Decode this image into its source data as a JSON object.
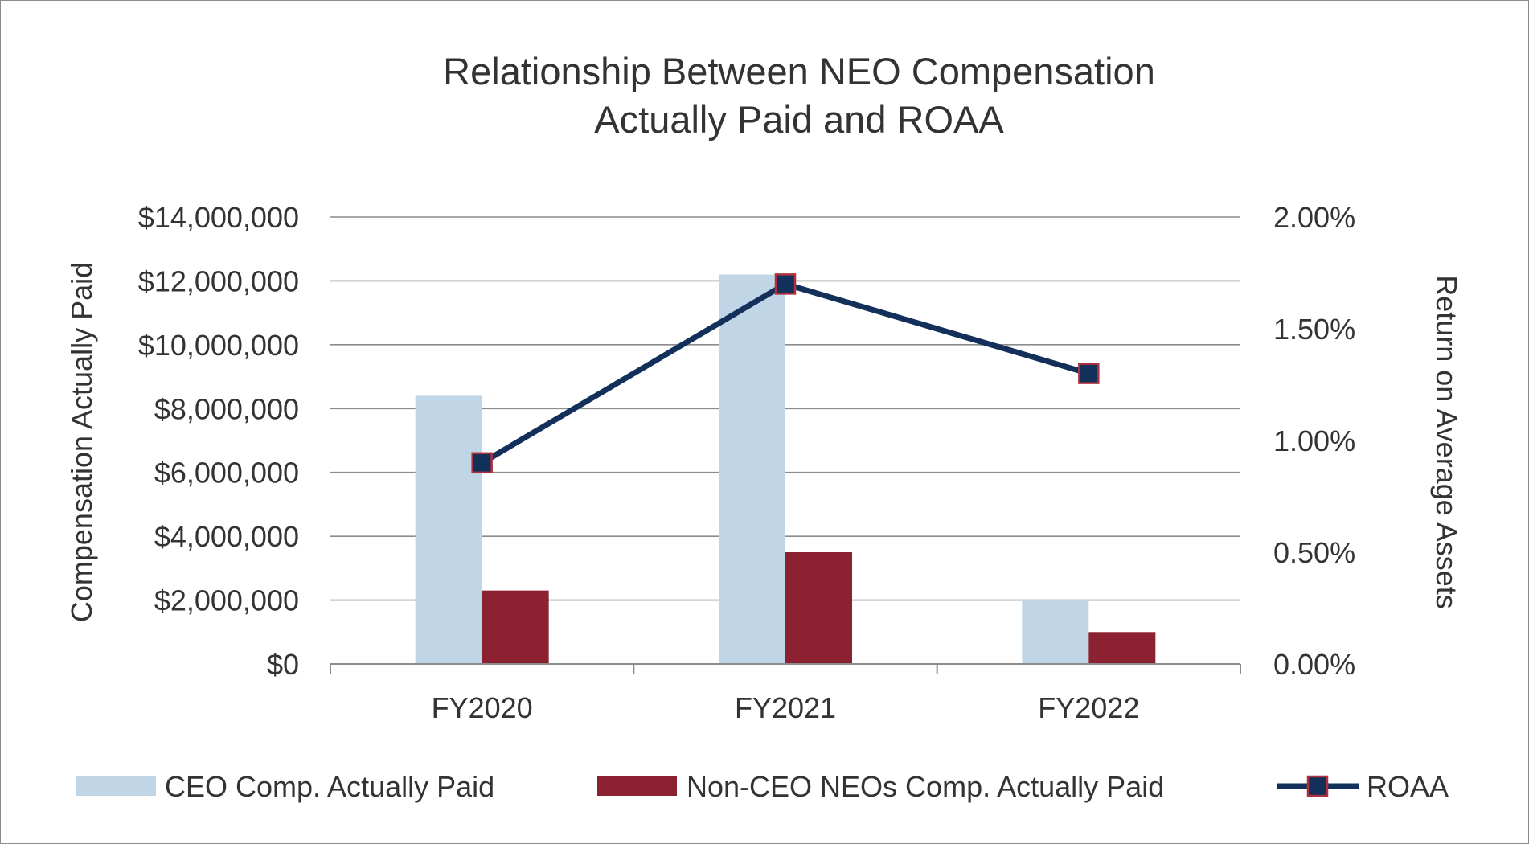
{
  "chart_data": {
    "type": "bar",
    "title": [
      "Relationship Between NEO Compensation",
      "Actually Paid and ROAA"
    ],
    "categories": [
      "FY2020",
      "FY2021",
      "FY2022"
    ],
    "ylabel": "Compensation Actually Paid",
    "y2label": "Return on Average Assets",
    "ylim": [
      0,
      14000000
    ],
    "y2lim": [
      0,
      2.0
    ],
    "yticks": [
      0,
      2000000,
      4000000,
      6000000,
      8000000,
      10000000,
      12000000,
      14000000
    ],
    "ytick_labels": [
      "$0",
      "$2,000,000",
      "$4,000,000",
      "$6,000,000",
      "$8,000,000",
      "$10,000,000",
      "$12,000,000",
      "$14,000,000"
    ],
    "y2ticks": [
      0,
      0.5,
      1.0,
      1.5,
      2.0
    ],
    "y2tick_labels": [
      "0.00%",
      "0.50%",
      "1.00%",
      "1.50%",
      "2.00%"
    ],
    "grid": true,
    "legend_position": "bottom",
    "series": [
      {
        "name": "CEO Comp. Actually Paid",
        "type": "bar",
        "axis": "left",
        "color": "#c0d5e6",
        "values": [
          8400000,
          12200000,
          2000000
        ]
      },
      {
        "name": "Non-CEO NEOs Comp. Actually Paid",
        "type": "bar",
        "axis": "left",
        "color": "#8b2131",
        "values": [
          2300000,
          3500000,
          1000000
        ]
      },
      {
        "name": "ROAA",
        "type": "line",
        "axis": "right",
        "color": "#13305a",
        "marker_edge": "#b0303e",
        "values": [
          0.9,
          1.7,
          1.3
        ]
      }
    ]
  }
}
